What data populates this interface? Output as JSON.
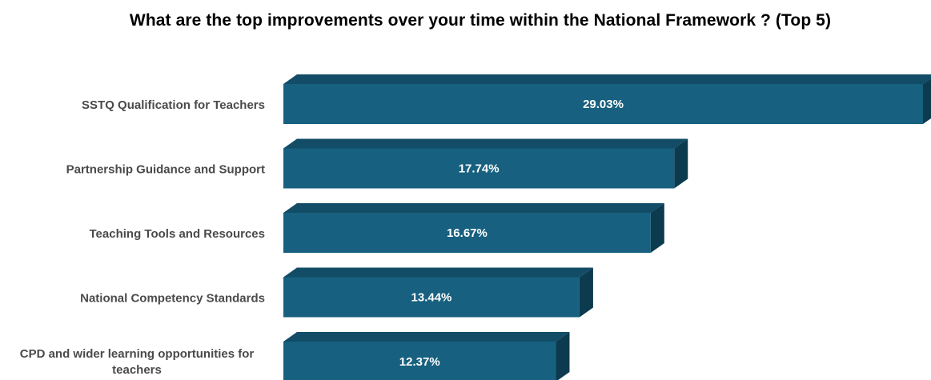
{
  "chart_data": {
    "type": "bar",
    "orientation": "horizontal",
    "style": "3d",
    "title": "What are the top improvements over your time within the National Framework ? (Top 5)",
    "categories": [
      [
        "SSTQ Qualification for Teachers"
      ],
      [
        "Partnership Guidance and Support"
      ],
      [
        "Teaching Tools and Resources"
      ],
      [
        "National Competency Standards"
      ],
      [
        "CPD and wider learning opportunities for",
        "teachers"
      ]
    ],
    "values": [
      29.03,
      17.74,
      16.67,
      13.44,
      12.37
    ],
    "value_labels": [
      "29.03%",
      "17.74%",
      "16.67%",
      "13.44%",
      "12.37%"
    ],
    "unit": "%",
    "xlim": [
      0,
      29.03
    ],
    "grid": false,
    "legend": "none",
    "colors": {
      "front": "#17607f",
      "top": "#124c66",
      "side": "#0c3a4f",
      "category_text": "#4a4a4a",
      "value_text": "#ffffff"
    }
  }
}
